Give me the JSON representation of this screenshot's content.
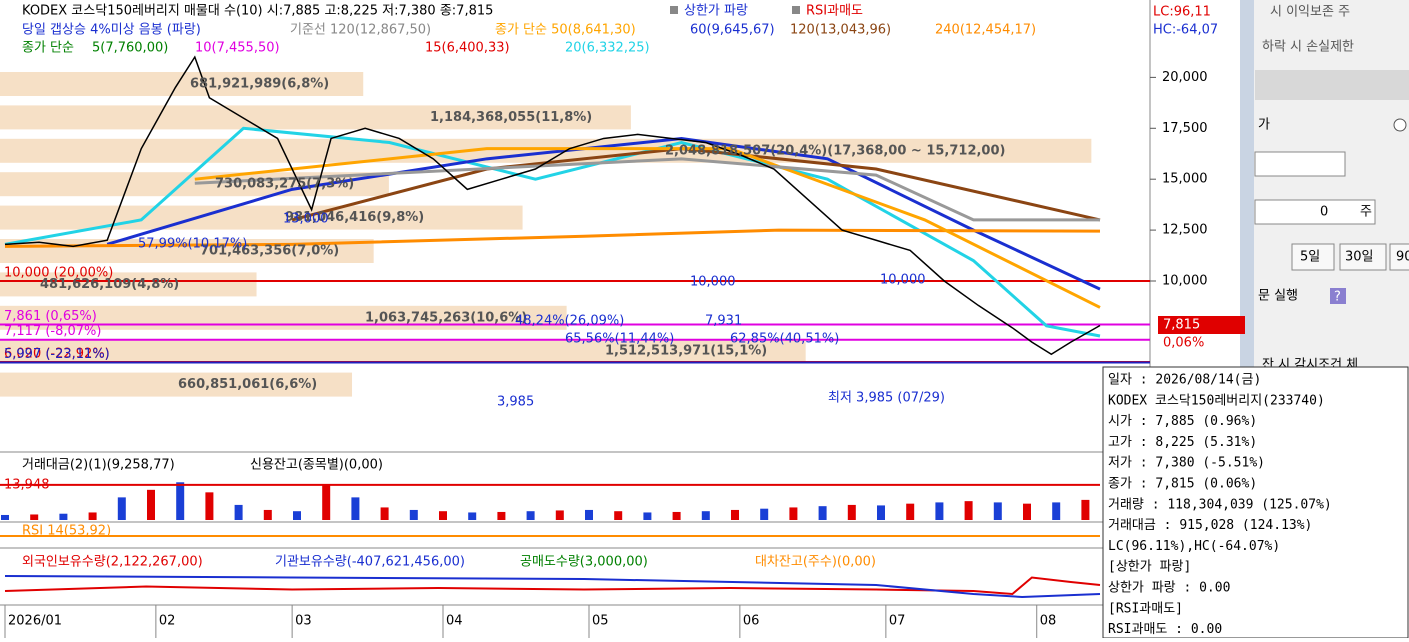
{
  "header": {
    "title": "KODEX 코스닥150레버리지 매물대 수(10)  시:7,885 고:8,225 저:7,380 종:7,815",
    "signal1": "상한가 파랑",
    "signal2": "RSI과매도",
    "lc": "LC:96,11",
    "hc": "HC:-64,07"
  },
  "legend_row2": {
    "gap": "당일 갭상승 4%미상 음봉 (파랑)",
    "base": "기준선 120(12,867,50)",
    "ma50": "종가 단순 50(8,641,30)"
  },
  "legend_row3": {
    "label": "종가 단순",
    "ma5": "5(7,760,00)",
    "ma10": "10(7,455,50)",
    "ma15": "15(6,400,33)"
  },
  "price_pane": {
    "ylim": [
      1700,
      23800
    ],
    "yticks": [
      {
        "value": 20000,
        "label": "20,000"
      },
      {
        "value": 17500,
        "label": "17,500"
      },
      {
        "value": 15000,
        "label": "15,000"
      },
      {
        "value": 12500,
        "label": "12,500"
      },
      {
        "value": 10000,
        "label": "10,000"
      }
    ],
    "xlim": [
      1,
      226
    ],
    "xticks": [
      {
        "value": 1,
        "label": "2026/01"
      },
      {
        "value": 32,
        "label": "02"
      },
      {
        "value": 60,
        "label": "03"
      },
      {
        "value": 91,
        "label": "04"
      },
      {
        "value": 121,
        "label": "05"
      },
      {
        "value": 152,
        "label": "06"
      },
      {
        "value": 182,
        "label": "07"
      },
      {
        "value": 213,
        "label": "08"
      }
    ],
    "close": {
      "color": "#000000",
      "x": [
        1,
        8,
        15,
        22,
        29,
        36,
        40,
        43,
        50,
        57,
        64,
        68,
        75,
        82,
        89,
        96,
        103,
        110,
        117,
        124,
        131,
        138,
        145,
        152,
        159,
        166,
        173,
        180,
        187,
        194,
        201,
        208,
        212,
        216,
        220,
        226
      ],
      "values": [
        11800,
        11900,
        11700,
        12000,
        16500,
        19500,
        21000,
        19000,
        18000,
        17000,
        13500,
        17000,
        17500,
        17000,
        16000,
        14500,
        15000,
        15500,
        16500,
        17000,
        17200,
        17000,
        16800,
        16200,
        15500,
        14000,
        12500,
        12000,
        11500,
        10000,
        8800,
        7700,
        7000,
        6400,
        7000,
        7815
      ]
    },
    "ma": [
      {
        "name": "20(6,332,25)",
        "color": "#22d3e6",
        "x": [
          1,
          29,
          50,
          80,
          110,
          140,
          170,
          200,
          215,
          226
        ],
        "values": [
          11800,
          13000,
          17500,
          16800,
          15000,
          16800,
          15000,
          11000,
          7800,
          7300
        ]
      },
      {
        "name": "60(9,645,67)",
        "color": "#1a2fd0",
        "x": [
          22,
          60,
          100,
          140,
          170,
          200,
          226
        ],
        "values": [
          11800,
          14500,
          16000,
          17000,
          16000,
          12500,
          9600
        ]
      },
      {
        "name": "120(13,043,96)",
        "color": "#8b4513",
        "x": [
          60,
          100,
          140,
          180,
          226
        ],
        "values": [
          13000,
          15500,
          16500,
          15500,
          13000
        ]
      },
      {
        "name": "240(12,454,17)",
        "color": "#ff8c00",
        "x": [
          1,
          60,
          120,
          160,
          226
        ],
        "values": [
          11700,
          11800,
          12200,
          12500,
          12450
        ]
      },
      {
        "name": "50(8,641,30)",
        "color": "#ffa500",
        "x": [
          40,
          100,
          150,
          190,
          226
        ],
        "values": [
          15000,
          16500,
          16500,
          13000,
          8700
        ]
      },
      {
        "name": "120(12,867,50)",
        "color": "#999999",
        "x": [
          40,
          140,
          180,
          200,
          226
        ],
        "values": [
          14800,
          16000,
          15200,
          13000,
          13000
        ]
      }
    ],
    "hlines": [
      {
        "value": 10000,
        "label": "10,000 (20,00%)",
        "color": "#e00000"
      },
      {
        "value": 7861,
        "label": "7,861 (0,65%)",
        "color": "#e000e0"
      },
      {
        "value": 7117,
        "label": "7,117 (-8,07%)",
        "color": "#e000e0"
      },
      {
        "value": 6020,
        "label": "6,020 (-22,92%)",
        "color": "#e00000"
      },
      {
        "value": 5997,
        "label": "5,997 (-23,11%)",
        "color": "#2020c0"
      }
    ],
    "profile": {
      "xlim": [
        0,
        2050000000
      ],
      "rows": [
        {
          "value": 681921989,
          "label": "681,921,989(6,8%)"
        },
        {
          "value": 1184368055,
          "label": "1,184,368,055(11,8%)"
        },
        {
          "value": 2048818507,
          "label": "2,048,818,507(20,4%)(17,368,00 ~ 15,712,00)"
        },
        {
          "value": 730083275,
          "label": "730,083,275(7,3%)"
        },
        {
          "value": 981046416,
          "label": "981,046,416(9,8%)"
        },
        {
          "value": 701463356,
          "label": "701,463,356(7,0%)"
        },
        {
          "value": 481626109,
          "label": "481,626,109(4,8%)"
        },
        {
          "value": 1063745263,
          "label": "1,063,745,263(10,6%)"
        },
        {
          "value": 1512513971,
          "label": "1,512,513,971(15,1%)"
        },
        {
          "value": 660851061,
          "label": "660,851,061(6,6%)"
        }
      ]
    },
    "annotations": [
      "57,99%(10,17%)",
      "13,000",
      "10,000",
      "10,000",
      "48,24%(26,09%)",
      "65,56%(11,44%)",
      "7,931",
      "62,85%(40,51%)",
      "3,985",
      "최저 3,985 (07/29)"
    ],
    "last": {
      "price": "7,815",
      "change": "0,06%"
    }
  },
  "volume_pane": {
    "title": "거래대금(2)(1)(9,258,77)",
    "credit": "신용잔고(종목별)(0,00)",
    "ylim": [
      0,
      17900
    ],
    "color": "#1a3fd6",
    "max": {
      "value": 13948,
      "label": "13,948"
    },
    "x": [
      1,
      7,
      13,
      19,
      25,
      31,
      37,
      43,
      49,
      55,
      61,
      67,
      73,
      79,
      85,
      91,
      97,
      103,
      109,
      115,
      121,
      127,
      133,
      139,
      145,
      151,
      157,
      163,
      169,
      175,
      181,
      187,
      193,
      199,
      205,
      211,
      217,
      223
    ],
    "values": [
      2000,
      2200,
      2500,
      3000,
      9000,
      12000,
      15000,
      11000,
      6000,
      4000,
      3500,
      14000,
      9000,
      5000,
      4000,
      3500,
      3000,
      3200,
      3500,
      3800,
      4000,
      3500,
      3000,
      3200,
      3500,
      4000,
      4500,
      5000,
      5500,
      6000,
      5800,
      6500,
      7000,
      7500,
      7000,
      6500,
      7000,
      8000
    ]
  },
  "rsi": {
    "title": "RSI 14(53,92)"
  },
  "holders_pane": {
    "ylim": [
      0,
      100
    ],
    "series": [
      {
        "name": "외국인보유수량(2,122,267,00)",
        "color": "#e00000",
        "x": [
          1,
          30,
          60,
          90,
          120,
          150,
          180,
          200,
          208,
          212,
          220,
          226
        ],
        "values": [
          40,
          55,
          45,
          50,
          45,
          50,
          45,
          40,
          30,
          85,
          70,
          60
        ]
      },
      {
        "name": "기관보유수량(-407,621,456,00)",
        "color": "#1a2fd0",
        "x": [
          1,
          60,
          120,
          180,
          200,
          210,
          226
        ],
        "values": [
          90,
          85,
          80,
          60,
          30,
          20,
          30
        ]
      }
    ],
    "short": "공매도수량(3,000,00)",
    "loan": "대차잔고(주수)(0,00)"
  },
  "side_panel": {
    "row1": "시  이익보존  주",
    "row2": "하락 시 손실제한",
    "row3": "가",
    "qty": "0",
    "unit": "주",
    "btn5": "5일",
    "btn30": "30일",
    "btn90": "90",
    "order": "문 실행",
    "help": "?",
    "row4": "잔 시 감시조건 체"
  },
  "info": {
    "lines": [
      "일자      : 2026/08/14(금)",
      "KODEX 코스닥150레버리지(233740)",
      " 시가     : 7,885 (0.96%)",
      " 고가     : 8,225 (5.31%)",
      " 저가     : 7,380 (-5.51%)",
      " 종가     : 7,815 (0.06%)",
      " 거래량   : 118,304,039 (125.07%)",
      " 거래대금 : 915,028 (124.13%)",
      " LC(96.11%),HC(-64.07%)",
      "[상한가 파랑]",
      "  상한가 파랑 : 0.00",
      "[RSI과매도]",
      "  RSI과매도 : 0.00"
    ]
  }
}
